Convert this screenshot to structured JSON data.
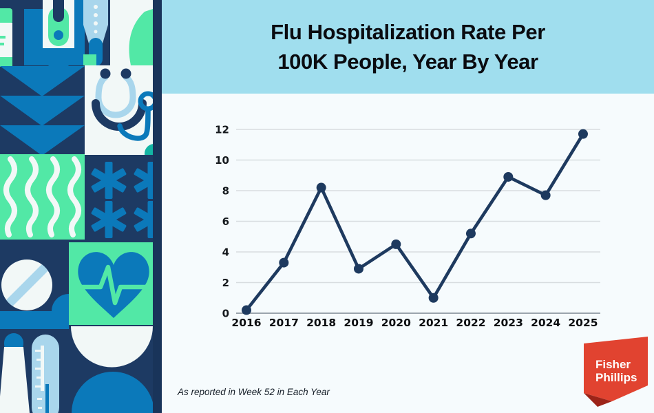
{
  "header": {
    "title": "Flu Hospitalization Rate Per 100K People, Year By Year",
    "title_line1": "Flu Hospitalization Rate Per",
    "title_line2": "100K People, Year By Year"
  },
  "chart_data": {
    "type": "line",
    "title": "Flu Hospitalization Rate Per 100K People, Year By Year",
    "categories": [
      "2016",
      "2017",
      "2018",
      "2019",
      "2020",
      "2021",
      "2022",
      "2023",
      "2024",
      "2025"
    ],
    "values": [
      0.2,
      3.3,
      8.2,
      2.9,
      4.5,
      1.0,
      5.2,
      8.9,
      7.7,
      11.7
    ],
    "xlabel": "",
    "ylabel": "",
    "ylim": [
      0,
      12
    ],
    "yticks": [
      0,
      2,
      4,
      6,
      8,
      10,
      12
    ],
    "grid": true,
    "legend": false,
    "line_color": "#1e3a5f",
    "point_color": "#1e3a5f",
    "marker": "circle"
  },
  "footer": {
    "note": "As reported in Week 52 in Each Year"
  },
  "logo": {
    "line1": "Fisher",
    "line2": "Phillips",
    "banner_color": "#e14330",
    "fold_color": "#9c2418"
  },
  "decor": {
    "icons": [
      "medicine-bottle",
      "digital-thermometer",
      "mercury-thermometer",
      "leaf",
      "chevron-down-pattern",
      "stethoscope",
      "wave-pattern",
      "medical-asterisk",
      "pill",
      "heart-pulse",
      "swab",
      "thermometer-scale",
      "dome"
    ],
    "palette": {
      "navy": "#1d3a63",
      "blue": "#0b79ba",
      "light_blue": "#a9d6ec",
      "mint": "#52e8a6",
      "teal": "#14b5a4",
      "off_white": "#f2f8f7",
      "header_blue": "#a0deee",
      "page_bg": "#f6fbfd",
      "ink": "#0a0b10"
    }
  }
}
